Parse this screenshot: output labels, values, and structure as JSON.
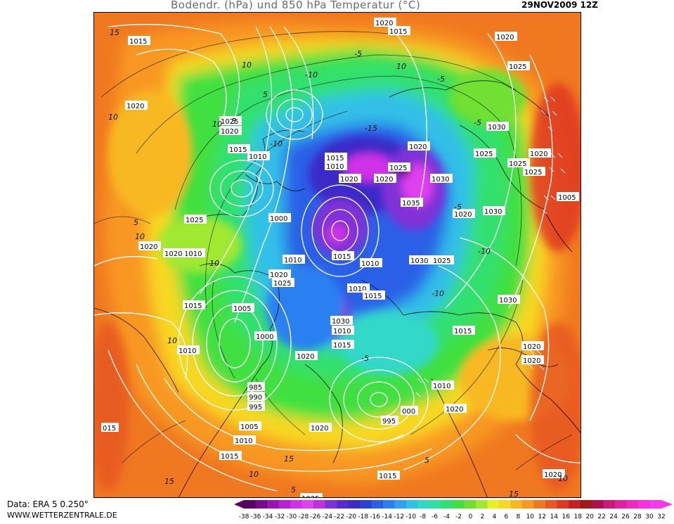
{
  "header": {
    "title": "Bodendr. (hPa) und 850 hPa Temperatur (°C)",
    "date": "29NOV2009 12Z"
  },
  "footer": {
    "source": "Data: ERA 5 0.250°",
    "website": "WWW.WETTERZENTRALE.DE"
  },
  "legend": {
    "ticks": [
      "-38",
      "-36",
      "-34",
      "-32",
      "-30",
      "-28",
      "-26",
      "-24",
      "-22",
      "-20",
      "-18",
      "-16",
      "-14",
      "-12",
      "-10",
      "-8",
      "-6",
      "-4",
      "-2",
      "0",
      "2",
      "4",
      "6",
      "8",
      "10",
      "12",
      "14",
      "16",
      "18",
      "20",
      "22",
      "24",
      "26",
      "28",
      "30",
      "32"
    ],
    "colors": [
      "#5a0060",
      "#7a0a8a",
      "#9a15b0",
      "#b520d0",
      "#d030e8",
      "#e040f0",
      "#c030e0",
      "#8030d8",
      "#5a2ad0",
      "#3a2ac8",
      "#2a40d8",
      "#2a60e8",
      "#2a80f0",
      "#30a0f0",
      "#30c0e8",
      "#30d8c8",
      "#30e0a0",
      "#30e070",
      "#40e040",
      "#70e030",
      "#a0e830",
      "#e8f020",
      "#f8d820",
      "#f8b820",
      "#f89820",
      "#f07820",
      "#e85820",
      "#e03820",
      "#c82020",
      "#a01818",
      "#b01048",
      "#d01878",
      "#e020a0",
      "#f028c0",
      "#f830e0",
      "#f838f0"
    ],
    "arrow_left_color": "#5a0060",
    "arrow_right_color": "#f838f0"
  },
  "pressure_labels": [
    {
      "text": "1015"
    },
    {
      "text": "1020"
    },
    {
      "text": "1015"
    },
    {
      "text": "1020"
    },
    {
      "text": "1025"
    },
    {
      "text": "1020"
    },
    {
      "text": "1025"
    },
    {
      "text": "1020"
    },
    {
      "text": "1015"
    },
    {
      "text": "1010"
    },
    {
      "text": "1015"
    },
    {
      "text": "1010"
    },
    {
      "text": "1020"
    },
    {
      "text": "1020"
    },
    {
      "text": "1025"
    },
    {
      "text": "1030"
    },
    {
      "text": "1025"
    },
    {
      "text": "1020"
    },
    {
      "text": "1020"
    },
    {
      "text": "1025"
    },
    {
      "text": "1030"
    },
    {
      "text": "1035"
    },
    {
      "text": "1020"
    },
    {
      "text": "1030"
    },
    {
      "text": "1025"
    },
    {
      "text": "1000"
    },
    {
      "text": "1010"
    },
    {
      "text": "1020"
    },
    {
      "text": "1020"
    },
    {
      "text": "1015"
    },
    {
      "text": "1010"
    },
    {
      "text": "1010"
    },
    {
      "text": "1030"
    },
    {
      "text": "1025"
    },
    {
      "text": "1020"
    },
    {
      "text": "1025"
    },
    {
      "text": "1010"
    },
    {
      "text": "1015"
    },
    {
      "text": "1005"
    },
    {
      "text": "1030"
    },
    {
      "text": "1015"
    },
    {
      "text": "1030"
    },
    {
      "text": "1010"
    },
    {
      "text": "1000"
    },
    {
      "text": "1020"
    },
    {
      "text": "1015"
    },
    {
      "text": "1015"
    },
    {
      "text": "1020"
    },
    {
      "text": "1020"
    },
    {
      "text": "1010"
    },
    {
      "text": "985"
    },
    {
      "text": "990"
    },
    {
      "text": "995"
    },
    {
      "text": "1010"
    },
    {
      "text": "1020"
    },
    {
      "text": "000"
    },
    {
      "text": "995"
    },
    {
      "text": "1005"
    },
    {
      "text": "1020"
    },
    {
      "text": "015"
    },
    {
      "text": "1010"
    },
    {
      "text": "1005"
    },
    {
      "text": "1015"
    },
    {
      "text": "1015"
    },
    {
      "text": "1020"
    },
    {
      "text": "1025"
    },
    {
      "text": "1015"
    },
    {
      "text": "1025"
    }
  ],
  "temperature_labels": [
    {
      "text": "15"
    },
    {
      "text": "10"
    },
    {
      "text": "5"
    },
    {
      "text": "10"
    },
    {
      "text": "-5"
    },
    {
      "text": "-10"
    },
    {
      "text": "-15"
    },
    {
      "text": "-10"
    },
    {
      "text": "-5"
    },
    {
      "text": "-5"
    },
    {
      "text": "5"
    },
    {
      "text": "10"
    },
    {
      "text": "-10"
    },
    {
      "text": "-10"
    },
    {
      "text": "-5"
    },
    {
      "text": "10"
    },
    {
      "text": "-10"
    },
    {
      "text": "5"
    },
    {
      "text": "10"
    },
    {
      "text": "15"
    },
    {
      "text": "10"
    },
    {
      "text": "15"
    },
    {
      "text": "5"
    },
    {
      "text": "10"
    },
    {
      "text": "15"
    },
    {
      "text": "10"
    },
    {
      "text": "-5"
    },
    {
      "text": "5"
    }
  ]
}
